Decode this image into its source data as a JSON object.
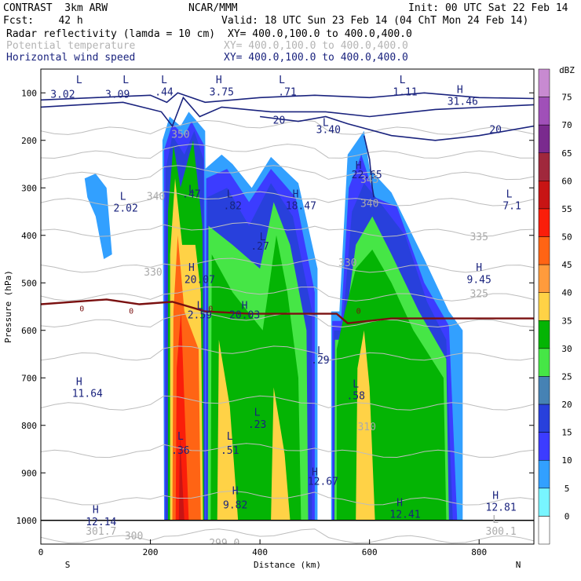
{
  "header": {
    "model": "CONTRAST  3km ARW",
    "org": "NCAR/MMM",
    "init": "Init: 00 UTC Sat 22 Feb 14",
    "fcst": "Fcst:    42 h",
    "valid": "Valid: 18 UTC Sun 23 Feb 14 (04 ChT Mon 24 Feb 14)",
    "fields": [
      {
        "name": "Radar reflectivity (lamda = 10 cm)",
        "xy": "XY= 400.0,100.0 to 400.0,400.0",
        "color": "#000000"
      },
      {
        "name": "Potential temperature",
        "xy": "XY= 400.0,100.0 to 400.0,400.0",
        "color": "#b4b4b4"
      },
      {
        "name": "Horizontal wind speed",
        "xy": "XY= 400.0,100.0 to 400.0,400.0",
        "color": "#1a237e"
      }
    ]
  },
  "chart_data": {
    "type": "cross-section",
    "xlabel": "Distance (km)",
    "ylabel": "Pressure (hPa)",
    "xlim": [
      0,
      900
    ],
    "ylim": [
      1050,
      50
    ],
    "x_ticks": [
      "0",
      "200",
      "400",
      "600",
      "800"
    ],
    "y_ticks": [
      "100",
      "200",
      "300",
      "400",
      "500",
      "600",
      "700",
      "800",
      "900",
      "1000"
    ],
    "x_left_label": "S",
    "x_right_label": "N",
    "colorbar": {
      "unit": "dBZ",
      "levels": [
        "75",
        "70",
        "65",
        "60",
        "55",
        "50",
        "45",
        "40",
        "35",
        "30",
        "25",
        "20",
        "15",
        "10",
        "5",
        "0"
      ],
      "colors": [
        "#c88ad1",
        "#a050b8",
        "#7a2a8e",
        "#a0283c",
        "#c81414",
        "#fa1e0a",
        "#ff6414",
        "#ff9b3c",
        "#ffd246",
        "#04b404",
        "#46e646",
        "#4682b4",
        "#2840dc",
        "#3c3cff",
        "#32a0ff",
        "#78f5ff"
      ]
    },
    "reflectivity_columns": [
      {
        "x0": 228,
        "x1": 300,
        "p_top": 150,
        "max_dbz": 55
      },
      {
        "x0": 300,
        "x1": 500,
        "p_top": 230,
        "max_dbz": 35
      },
      {
        "x0": 530,
        "x1": 770,
        "p_top": 180,
        "max_dbz": 30
      }
    ],
    "wind_labels": [
      {
        "text": "L",
        "x": 70,
        "p": 80
      },
      {
        "text": "3.02",
        "x": 40,
        "p": 110
      },
      {
        "text": "L",
        "x": 155,
        "p": 80
      },
      {
        "text": "3.09",
        "x": 140,
        "p": 110
      },
      {
        "text": "L",
        "x": 225,
        "p": 80
      },
      {
        "text": ".44",
        "x": 225,
        "p": 105
      },
      {
        "text": "H",
        "x": 325,
        "p": 80
      },
      {
        "text": "3.75",
        "x": 330,
        "p": 105
      },
      {
        "text": "L",
        "x": 440,
        "p": 80
      },
      {
        "text": ".71",
        "x": 450,
        "p": 105
      },
      {
        "text": "L",
        "x": 660,
        "p": 80
      },
      {
        "text": "1.11",
        "x": 665,
        "p": 105
      },
      {
        "text": "H",
        "x": 765,
        "p": 100
      },
      {
        "text": "31.46",
        "x": 770,
        "p": 125
      },
      {
        "text": "L",
        "x": 520,
        "p": 170
      },
      {
        "text": "3.40",
        "x": 525,
        "p": 185
      },
      {
        "text": "H",
        "x": 580,
        "p": 260
      },
      {
        "text": "22.65",
        "x": 595,
        "p": 280
      },
      {
        "text": "L",
        "x": 150,
        "p": 325
      },
      {
        "text": "2.02",
        "x": 155,
        "p": 350
      },
      {
        "text": "L",
        "x": 275,
        "p": 310
      },
      {
        "text": ".47",
        "x": 275,
        "p": 320
      },
      {
        "text": "L",
        "x": 345,
        "p": 320
      },
      {
        "text": ".82",
        "x": 350,
        "p": 345
      },
      {
        "text": "H",
        "x": 465,
        "p": 320
      },
      {
        "text": "18.47",
        "x": 475,
        "p": 345
      },
      {
        "text": "L",
        "x": 855,
        "p": 320
      },
      {
        "text": "7.1",
        "x": 860,
        "p": 345
      },
      {
        "text": "L",
        "x": 405,
        "p": 410
      },
      {
        "text": ".27",
        "x": 400,
        "p": 430
      },
      {
        "text": "H",
        "x": 275,
        "p": 475
      },
      {
        "text": "20.07",
        "x": 290,
        "p": 500
      },
      {
        "text": "H",
        "x": 800,
        "p": 475
      },
      {
        "text": "9.45",
        "x": 800,
        "p": 500
      },
      {
        "text": "L",
        "x": 290,
        "p": 555
      },
      {
        "text": "2.59",
        "x": 290,
        "p": 575
      },
      {
        "text": "H",
        "x": 372,
        "p": 555
      },
      {
        "text": "20.03",
        "x": 372,
        "p": 575
      },
      {
        "text": "L",
        "x": 510,
        "p": 650
      },
      {
        "text": ".29",
        "x": 510,
        "p": 670
      },
      {
        "text": "L",
        "x": 575,
        "p": 720
      },
      {
        "text": ".58",
        "x": 575,
        "p": 745
      },
      {
        "text": "H",
        "x": 70,
        "p": 715
      },
      {
        "text": "11.64",
        "x": 85,
        "p": 740
      },
      {
        "text": "L",
        "x": 395,
        "p": 780
      },
      {
        "text": ".23",
        "x": 395,
        "p": 805
      },
      {
        "text": "L",
        "x": 255,
        "p": 830
      },
      {
        "text": ".36",
        "x": 255,
        "p": 860
      },
      {
        "text": "L",
        "x": 345,
        "p": 830
      },
      {
        "text": ".51",
        "x": 345,
        "p": 860
      },
      {
        "text": "H",
        "x": 500,
        "p": 905
      },
      {
        "text": "12.67",
        "x": 515,
        "p": 925
      },
      {
        "text": "H",
        "x": 355,
        "p": 945
      },
      {
        "text": "9.82",
        "x": 355,
        "p": 975
      },
      {
        "text": "H",
        "x": 655,
        "p": 970
      },
      {
        "text": "12.41",
        "x": 665,
        "p": 995
      },
      {
        "text": "H",
        "x": 100,
        "p": 985
      },
      {
        "text": "12.14",
        "x": 110,
        "p": 1010
      },
      {
        "text": "H",
        "x": 830,
        "p": 955
      },
      {
        "text": "12.81",
        "x": 840,
        "p": 980
      }
    ],
    "wind_contour_labels": [
      {
        "text": "20",
        "x": 435,
        "p": 165
      },
      {
        "text": "20",
        "x": 830,
        "p": 185
      }
    ],
    "theta_labels": [
      {
        "text": "350",
        "x": 255,
        "p": 195
      },
      {
        "text": "345",
        "x": 600,
        "p": 290
      },
      {
        "text": "340",
        "x": 210,
        "p": 325
      },
      {
        "text": "340",
        "x": 600,
        "p": 340
      },
      {
        "text": "335",
        "x": 800,
        "p": 410
      },
      {
        "text": "330",
        "x": 205,
        "p": 485
      },
      {
        "text": "330",
        "x": 560,
        "p": 465
      },
      {
        "text": "325",
        "x": 800,
        "p": 530
      },
      {
        "text": "310",
        "x": 595,
        "p": 810
      },
      {
        "text": "301.7",
        "x": 110,
        "p": 1030
      },
      {
        "text": "300.1",
        "x": 840,
        "p": 1030
      },
      {
        "text": "299.0",
        "x": 335,
        "p": 1055
      },
      {
        "text": "L",
        "x": 830,
        "p": 1005
      },
      {
        "text": "300",
        "x": 170,
        "p": 1040
      }
    ],
    "freezing_label": "0"
  }
}
